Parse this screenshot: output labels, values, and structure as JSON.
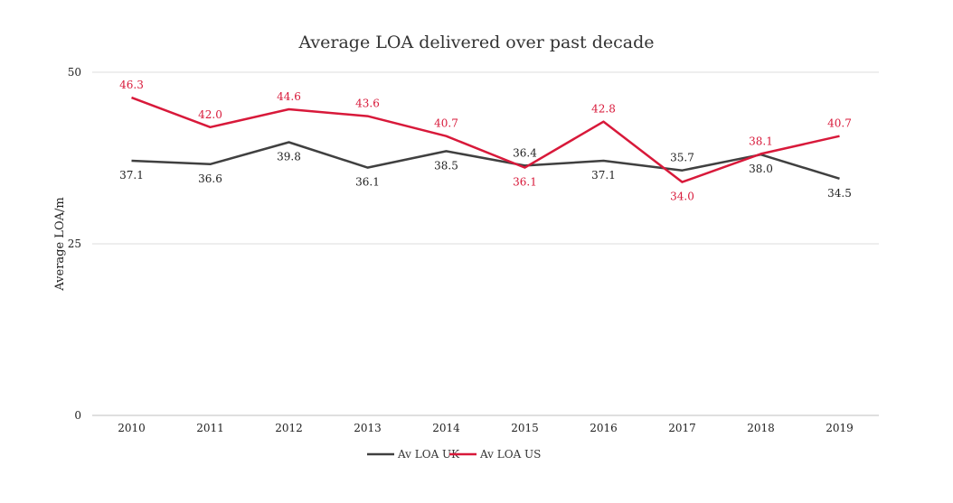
{
  "chart_data": {
    "type": "line",
    "title": "Average LOA delivered over past decade",
    "xlabel": "",
    "ylabel": "Average LOA/m",
    "x": [
      "2010",
      "2011",
      "2012",
      "2013",
      "2014",
      "2015",
      "2016",
      "2017",
      "2018",
      "2019"
    ],
    "ylim": [
      0,
      50
    ],
    "yticks": [
      "0",
      "25",
      "50"
    ],
    "grid": true,
    "legend_position": "bottom",
    "series": [
      {
        "name": "Av LOA UK",
        "color": "#404040",
        "values": [
          37.1,
          36.6,
          39.8,
          36.1,
          38.5,
          36.4,
          37.1,
          35.7,
          38.0,
          34.5
        ],
        "labels": [
          "37.1",
          "36.6",
          "39.8",
          "36.1",
          "38.5",
          "36.4",
          "37.1",
          "35.7",
          "38.0",
          "34.5"
        ]
      },
      {
        "name": "Av LOA US",
        "color": "#d8193a",
        "values": [
          46.3,
          42.0,
          44.6,
          43.6,
          40.7,
          36.1,
          42.8,
          34.0,
          38.1,
          40.7
        ],
        "labels": [
          "46.3",
          "42.0",
          "44.6",
          "43.6",
          "40.7",
          "36.1",
          "42.8",
          "34.0",
          "38.1",
          "40.7"
        ]
      }
    ]
  }
}
